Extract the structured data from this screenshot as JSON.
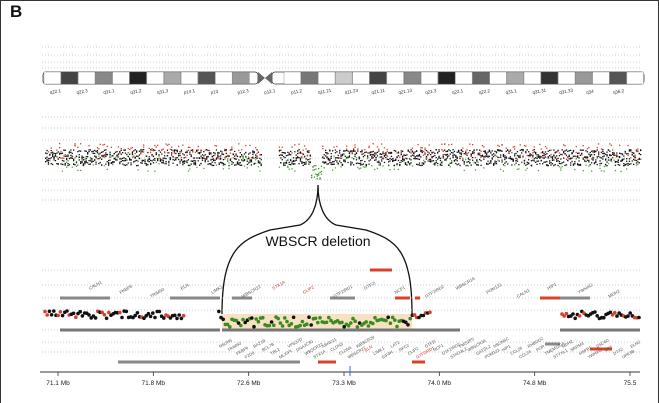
{
  "panel_label": "B",
  "deletion_label": "WBSCR deletion",
  "chromosome_bands": [
    "q22.1",
    "q22.3",
    "q31.1",
    "q31.2",
    "q31.3",
    "p14.1",
    "p13",
    "p12.3",
    "p12.1",
    "p11.2",
    "q11.21",
    "q11.23",
    "q21.11",
    "q21.13",
    "q21.3",
    "q22.1",
    "q22.2",
    "q31.1",
    "q31.31",
    "q31.33",
    "q34",
    "q36.2"
  ],
  "genes_top": [
    "CALN1",
    "FKBP6",
    "TRIM50",
    "ELN",
    "LIMK1",
    "WBSCR22",
    "STX1A",
    "CLIP2",
    "GTF2IRD1",
    "GTF2I",
    "NCF1",
    "GTF2IRD2",
    "WBSCR16",
    "POM121",
    "CALN1",
    "HIP1",
    "YWHAG",
    "MDH2"
  ],
  "genes_bottom": [
    "NSUN5",
    "TRIM50",
    "FKBP6",
    "FZD9",
    "BAZ1B",
    "BCL7B",
    "TBL2",
    "MLXIPL",
    "VPS37D",
    "DNAJC30",
    "WBSCR22",
    "STX1A",
    "ABHD11",
    "CLDN3",
    "CLDN4",
    "WBSCR27",
    "WBSCR28",
    "ELN",
    "LIMK1",
    "EIF4H",
    "LAT2",
    "RFC2",
    "CLIP2",
    "GTF2IRD1",
    "GTF2I",
    "NCF1",
    "GTF2IRD2",
    "STAG3L2",
    "PMS2P5",
    "WBSCR16",
    "GATSL2",
    "POM121",
    "NSUN5C",
    "HIP1",
    "CCL26",
    "CCL24",
    "RHBDD2",
    "POR",
    "TMEM120A",
    "STYXL1",
    "MDH2",
    "SRRM3",
    "HSPB1",
    "YWHAG",
    "SSC4D",
    "ZP3",
    "DTX2",
    "UPK3B",
    "ELN2"
  ],
  "axis_ticks": [
    "71.1 Mb",
    "71.8 Mb",
    "72.6 Mb",
    "73.3 Mb",
    "74.0 Mb",
    "74.8 Mb",
    "75.5"
  ]
}
